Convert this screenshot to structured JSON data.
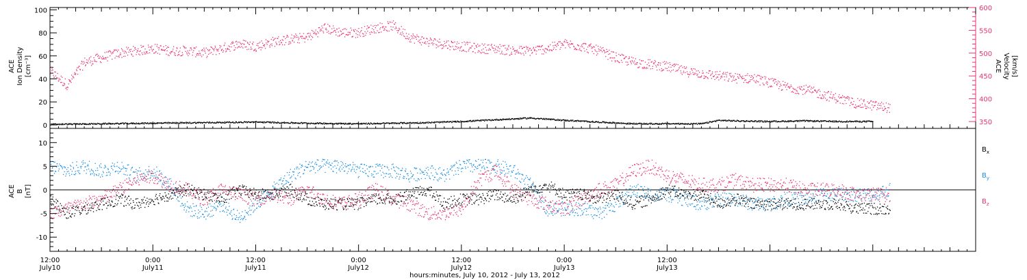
{
  "chart_data": [
    {
      "type": "scatter",
      "panel": "top",
      "ylabel_left": [
        "ACE",
        "Ion Density",
        "[cm⁻³]"
      ],
      "ylabel_right": [
        "ACE",
        "Velocity",
        "[km/s]"
      ],
      "ylim_left": [
        -3,
        102
      ],
      "yticks_left": [
        0,
        20,
        40,
        60,
        80,
        100
      ],
      "ylim_right": [
        335,
        600
      ],
      "yticks_right": [
        350,
        400,
        450,
        500,
        550,
        600
      ],
      "right_axis_color": "#e8336b",
      "series": [
        {
          "axis": "left",
          "color": "#000000",
          "x": [
            0,
            6,
            12,
            18,
            24,
            30,
            36,
            40,
            44,
            48,
            52,
            56,
            60,
            64,
            68,
            72,
            76,
            78,
            80,
            84,
            88,
            92,
            96
          ],
          "y": [
            0.5,
            1.0,
            1.5,
            2.0,
            2.5,
            1.5,
            1.0,
            1.5,
            2.0,
            3.0,
            4.5,
            6.0,
            4.0,
            2.5,
            1.0,
            1.0,
            1.0,
            4.0,
            3.5,
            3.0,
            3.5,
            3.0,
            3.0
          ]
        },
        {
          "axis": "right",
          "color": "#e8336b",
          "x": [
            0,
            2,
            4,
            6,
            8,
            10,
            12,
            14,
            16,
            18,
            20,
            22,
            24,
            26,
            28,
            30,
            32,
            34,
            36,
            38,
            40,
            42,
            44,
            46,
            48,
            50,
            52,
            54,
            56,
            58,
            60,
            62,
            64,
            66,
            68,
            70,
            72,
            74,
            76,
            78,
            80,
            82,
            84,
            86,
            88,
            90,
            92,
            94,
            96,
            98
          ],
          "y": [
            460,
            430,
            480,
            490,
            500,
            505,
            510,
            505,
            505,
            500,
            510,
            520,
            515,
            525,
            530,
            535,
            555,
            545,
            545,
            555,
            560,
            535,
            525,
            520,
            515,
            510,
            510,
            505,
            505,
            510,
            520,
            515,
            505,
            490,
            480,
            475,
            470,
            460,
            455,
            450,
            445,
            445,
            435,
            425,
            420,
            410,
            400,
            390,
            385,
            380
          ]
        }
      ]
    },
    {
      "type": "scatter",
      "panel": "bottom",
      "ylabel_left": [
        "ACE",
        "B",
        "[nT]"
      ],
      "ylim": [
        -13,
        13
      ],
      "yticks": [
        -10,
        -5,
        0,
        5,
        10
      ],
      "legend": [
        {
          "label": "B",
          "sub": "x",
          "color": "#000000"
        },
        {
          "label": "B",
          "sub": "y",
          "color": "#1a8fe0"
        },
        {
          "label": "B",
          "sub": "z",
          "color": "#e8336b"
        }
      ],
      "series": [
        {
          "name": "Bx",
          "color": "#000000",
          "x": [
            0,
            2,
            4,
            6,
            8,
            10,
            12,
            14,
            16,
            18,
            20,
            22,
            24,
            26,
            28,
            30,
            32,
            34,
            36,
            38,
            40,
            42,
            44,
            46,
            48,
            50,
            52,
            54,
            56,
            58,
            60,
            62,
            64,
            66,
            68,
            70,
            72,
            74,
            76,
            78,
            80,
            82,
            84,
            86,
            88,
            90,
            92,
            94,
            96,
            98
          ],
          "y": [
            -2,
            -5,
            -4,
            -3,
            -2,
            -3,
            -2,
            -1,
            0,
            -1,
            -2,
            0,
            -1,
            -1,
            0,
            -2,
            -3,
            -3,
            -3,
            -2,
            -2,
            -1,
            0,
            -3,
            -2,
            -2,
            -1,
            -2,
            0,
            1,
            -1,
            -1,
            -2,
            -1,
            -3,
            -2,
            0,
            -1,
            -1,
            -3,
            -2,
            -3,
            -3,
            -3,
            -3,
            -3,
            -3,
            -4,
            -4,
            -4
          ]
        },
        {
          "name": "By",
          "color": "#1a8fe0",
          "x": [
            0,
            2,
            4,
            6,
            8,
            10,
            12,
            14,
            16,
            18,
            20,
            22,
            24,
            26,
            28,
            30,
            32,
            34,
            36,
            38,
            40,
            42,
            44,
            46,
            48,
            50,
            52,
            54,
            56,
            58,
            60,
            62,
            64,
            66,
            68,
            70,
            72,
            74,
            76,
            78,
            80,
            82,
            84,
            86,
            88,
            90,
            92,
            94,
            96,
            98
          ],
          "y": [
            5,
            4,
            5,
            4,
            5,
            3,
            4,
            1,
            -4,
            -5,
            -3,
            -6,
            -3,
            0,
            3,
            5,
            5,
            5,
            4,
            4,
            4,
            3,
            4,
            3,
            5,
            5,
            5,
            4,
            1,
            -4,
            -4,
            -4,
            -5,
            -3,
            0,
            -1,
            -1,
            -2,
            -3,
            -2,
            -2,
            -3,
            -3,
            -2,
            -2,
            -1,
            -1,
            -1,
            -1,
            0
          ]
        },
        {
          "name": "Bz",
          "color": "#e8336b",
          "x": [
            0,
            2,
            4,
            6,
            8,
            10,
            12,
            14,
            16,
            18,
            20,
            22,
            24,
            26,
            28,
            30,
            32,
            34,
            36,
            38,
            40,
            42,
            44,
            46,
            48,
            50,
            52,
            54,
            56,
            58,
            60,
            62,
            64,
            66,
            68,
            70,
            72,
            74,
            76,
            78,
            80,
            82,
            84,
            86,
            88,
            90,
            92,
            94,
            96,
            98
          ],
          "y": [
            -5,
            -4,
            -3,
            -2,
            0,
            2,
            3,
            1,
            0,
            -2,
            0,
            -1,
            -2,
            -1,
            -2,
            0,
            -2,
            -3,
            -2,
            0,
            -2,
            -3,
            -5,
            -5,
            -4,
            2,
            4,
            0,
            -2,
            -3,
            -4,
            -2,
            0,
            1,
            4,
            5,
            3,
            2,
            1,
            1,
            2,
            1,
            1,
            1,
            0,
            0,
            0,
            -1,
            -1,
            -1
          ]
        }
      ]
    },
    {
      "type": "axis",
      "xlim": [
        0,
        108
      ],
      "major_ticks": [
        0,
        12,
        24,
        36,
        48,
        60,
        72,
        84,
        96
      ],
      "tick_labels": [
        {
          "time": "12:00",
          "date": "July10"
        },
        {
          "time": "0:00",
          "date": "July11"
        },
        {
          "time": "12:00",
          "date": "July11"
        },
        {
          "time": "0:00",
          "date": "July12"
        },
        {
          "time": "12:00",
          "date": "July12"
        },
        {
          "time": "0:00",
          "date": "July13"
        },
        {
          "time": "12:00",
          "date": "July13"
        }
      ],
      "tick_label_hours": [
        0,
        12,
        24,
        36,
        48,
        60,
        72
      ],
      "xlabel": "hours:minutes, July 10, 2012 - July 13, 2012"
    }
  ]
}
